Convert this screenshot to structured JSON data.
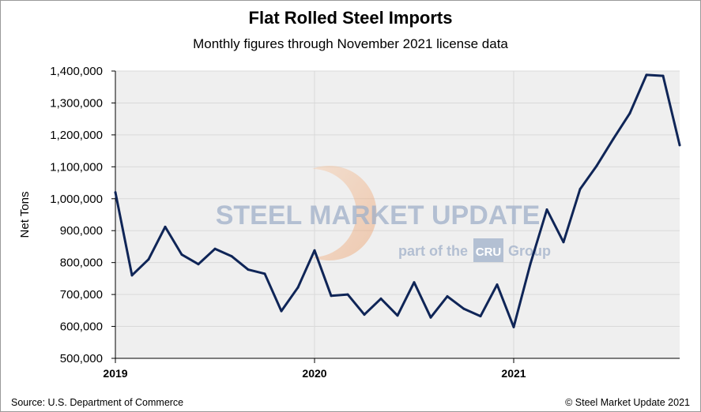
{
  "colors": {
    "line": "#0f2557",
    "grid": "#d9d9d9",
    "plot_background": "#efefef",
    "watermark_blue": "#9fb0c9",
    "watermark_orange": "#f1b48a"
  },
  "watermark": {
    "line1": "STEEL MARKET UPDATE",
    "line2_prefix": "part of the",
    "line2_logo": "CRU",
    "line2_suffix": "Group"
  },
  "footer": {
    "source": "Source: U.S. Department of Commerce",
    "copyright": "© Steel Market Update 2021"
  },
  "chart_data": {
    "type": "line",
    "title": "Flat Rolled Steel Imports",
    "subtitle": "Monthly figures through November 2021 license data",
    "xlabel": "",
    "ylabel": "Net Tons",
    "ylim": [
      500000,
      1400000
    ],
    "yticks": [
      "500,000",
      "600,000",
      "700,000",
      "800,000",
      "900,000",
      "1,000,000",
      "1,100,000",
      "1,200,000",
      "1,300,000",
      "1,400,000"
    ],
    "xticks": [
      "2019",
      "2020",
      "2021"
    ],
    "grid": true,
    "x": [
      "2019-01",
      "2019-02",
      "2019-03",
      "2019-04",
      "2019-05",
      "2019-06",
      "2019-07",
      "2019-08",
      "2019-09",
      "2019-10",
      "2019-11",
      "2019-12",
      "2020-01",
      "2020-02",
      "2020-03",
      "2020-04",
      "2020-05",
      "2020-06",
      "2020-07",
      "2020-08",
      "2020-09",
      "2020-10",
      "2020-11",
      "2020-12",
      "2021-01",
      "2021-02",
      "2021-03",
      "2021-04",
      "2021-05",
      "2021-06",
      "2021-07",
      "2021-08",
      "2021-09",
      "2021-10",
      "2021-11"
    ],
    "series": [
      {
        "values": [
          1020000,
          760000,
          810000,
          912000,
          825000,
          795000,
          843000,
          820000,
          778000,
          765000,
          648000,
          722000,
          838000,
          696000,
          700000,
          637000,
          687000,
          634000,
          738000,
          628000,
          694000,
          655000,
          632000,
          731000,
          598000,
          795000,
          966000,
          864000,
          1030000,
          1103000,
          1187000,
          1268000,
          1388000,
          1385000,
          1168000
        ]
      }
    ]
  }
}
